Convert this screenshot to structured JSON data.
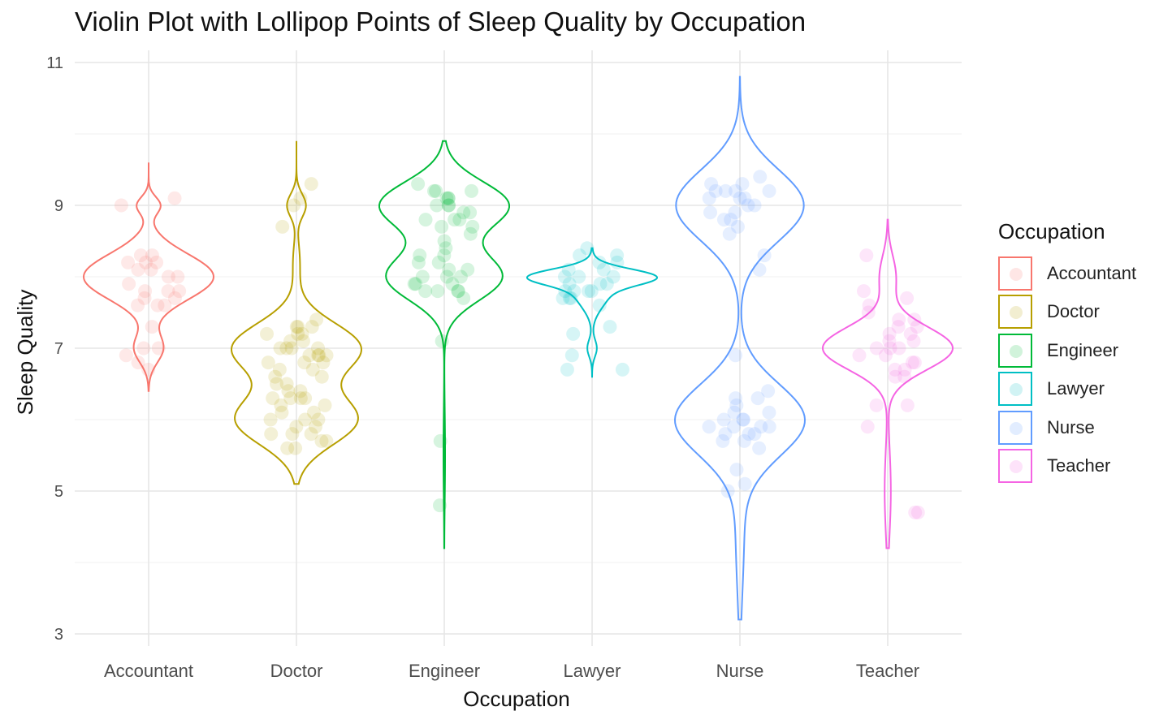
{
  "chart_data": {
    "type": "violin",
    "title": "Violin Plot with Lollipop Points of Sleep Quality by Occupation",
    "xlabel": "Occupation",
    "ylabel": "Sleep Quality",
    "ylim": [
      3,
      11
    ],
    "yticks": [
      "3",
      "5",
      "7",
      "9",
      "11"
    ],
    "grid": true,
    "legend": {
      "title": "Occupation",
      "placement": "right"
    },
    "categories": [
      "Accountant",
      "Doctor",
      "Engineer",
      "Lawyer",
      "Nurse",
      "Teacher"
    ],
    "series": [
      {
        "name": "Accountant",
        "color": "#F8766D",
        "range": [
          6.4,
          9.6
        ],
        "modes": [
          [
            8.0,
            0.32,
            0.9
          ],
          [
            9.0,
            0.12,
            0.16
          ],
          [
            7.0,
            0.2,
            0.2
          ]
        ],
        "points": [
          9.1,
          9.0,
          8.3,
          8.3,
          8.2,
          8.2,
          8.2,
          8.1,
          8.1,
          8.0,
          8.0,
          7.9,
          7.8,
          7.8,
          7.8,
          7.7,
          7.7,
          7.6,
          7.6,
          7.6,
          7.3,
          7.0,
          7.0,
          6.9,
          6.8,
          6.7
        ]
      },
      {
        "name": "Doctor",
        "color": "#B79F00",
        "range": [
          5.1,
          9.9
        ],
        "modes": [
          [
            7.0,
            0.35,
            0.95
          ],
          [
            6.0,
            0.35,
            0.9
          ],
          [
            9.0,
            0.16,
            0.14
          ],
          [
            8.2,
            0.3,
            0.05
          ]
        ],
        "points": [
          9.3,
          9.1,
          9.0,
          8.7,
          7.4,
          7.3,
          7.3,
          7.3,
          7.2,
          7.2,
          7.2,
          7.1,
          7.1,
          7.0,
          7.0,
          7.0,
          7.0,
          6.9,
          6.9,
          6.9,
          6.9,
          6.8,
          6.8,
          6.8,
          6.7,
          6.7,
          6.6,
          6.6,
          6.5,
          6.5,
          6.4,
          6.4,
          6.3,
          6.3,
          6.3,
          6.3,
          6.2,
          6.2,
          6.1,
          6.1,
          6.0,
          6.0,
          6.0,
          5.9,
          5.9,
          5.8,
          5.8,
          5.8,
          5.7,
          5.7,
          5.6,
          5.6
        ]
      },
      {
        "name": "Engineer",
        "color": "#00BA38",
        "range": [
          4.2,
          9.9
        ],
        "modes": [
          [
            9.0,
            0.33,
            0.95
          ],
          [
            8.0,
            0.33,
            0.85
          ],
          [
            5.5,
            0.6,
            0.012
          ]
        ],
        "points": [
          9.3,
          9.2,
          9.2,
          9.2,
          9.1,
          9.1,
          9.1,
          9.0,
          9.0,
          9.0,
          8.9,
          8.9,
          8.8,
          8.8,
          8.8,
          8.7,
          8.7,
          8.6,
          8.5,
          8.4,
          8.3,
          8.3,
          8.2,
          8.2,
          8.1,
          8.1,
          8.0,
          8.0,
          8.0,
          7.9,
          7.9,
          7.9,
          7.8,
          7.8,
          7.8,
          7.8,
          7.7,
          7.1,
          5.7,
          4.8
        ]
      },
      {
        "name": "Lawyer",
        "color": "#00BFC4",
        "range": [
          6.6,
          8.4
        ],
        "modes": [
          [
            8.0,
            0.11,
            0.9
          ],
          [
            7.8,
            0.22,
            0.3
          ],
          [
            7.0,
            0.12,
            0.08
          ]
        ],
        "points": [
          8.4,
          8.3,
          8.3,
          8.2,
          8.2,
          8.1,
          8.1,
          8.0,
          8.0,
          8.0,
          7.9,
          7.9,
          7.9,
          7.8,
          7.8,
          7.8,
          7.8,
          7.7,
          7.7,
          7.7,
          7.6,
          7.3,
          7.2,
          6.9,
          6.7,
          6.7
        ]
      },
      {
        "name": "Nurse",
        "color": "#619CFF",
        "range": [
          3.2,
          10.8
        ],
        "modes": [
          [
            9.0,
            0.5,
            0.9
          ],
          [
            6.0,
            0.5,
            0.9
          ],
          [
            4.5,
            0.9,
            0.06
          ]
        ],
        "points": [
          9.4,
          9.3,
          9.3,
          9.2,
          9.2,
          9.2,
          9.2,
          9.1,
          9.1,
          9.1,
          9.0,
          9.0,
          8.9,
          8.9,
          8.8,
          8.8,
          8.7,
          8.6,
          8.3,
          8.1,
          6.9,
          6.4,
          6.3,
          6.3,
          6.2,
          6.1,
          6.1,
          6.0,
          6.0,
          6.0,
          5.9,
          5.9,
          5.9,
          5.9,
          5.8,
          5.8,
          5.8,
          5.7,
          5.7,
          5.6,
          5.3,
          5.1,
          5.0
        ]
      },
      {
        "name": "Teacher",
        "color": "#F564E3",
        "range": [
          4.2,
          8.8
        ],
        "modes": [
          [
            7.0,
            0.3,
            0.95
          ],
          [
            8.0,
            0.3,
            0.12
          ],
          [
            5.0,
            0.6,
            0.045
          ]
        ],
        "points": [
          8.3,
          7.8,
          7.7,
          7.6,
          7.5,
          7.4,
          7.4,
          7.3,
          7.3,
          7.2,
          7.2,
          7.1,
          7.1,
          7.0,
          7.0,
          7.0,
          6.9,
          6.9,
          6.8,
          6.8,
          6.7,
          6.7,
          6.6,
          6.6,
          6.2,
          6.2,
          5.9,
          4.7,
          4.7
        ]
      }
    ]
  }
}
